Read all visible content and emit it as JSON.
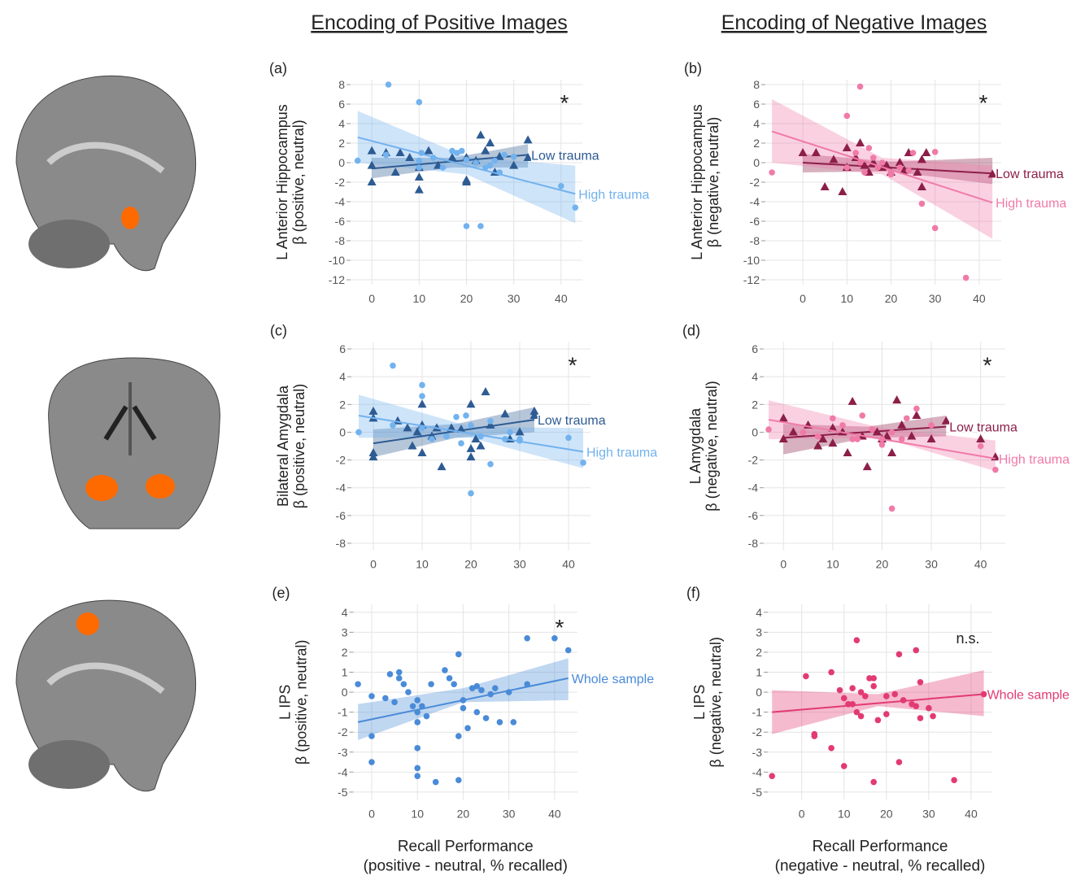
{
  "column_titles": [
    "Encoding of Positive Images",
    "Encoding of Negative Images"
  ],
  "chart_data": [
    {
      "type": "scatter",
      "panel": "(a)",
      "ylabel": [
        "L Anterior Hippocampus",
        "β (positive, neutral)"
      ],
      "annotation": "*",
      "xlim": [
        -4.5,
        44.5
      ],
      "ylim": [
        -12.5,
        8.5
      ],
      "xticks": [
        0,
        10,
        20,
        30,
        40
      ],
      "yticks": [
        8,
        6,
        4,
        2,
        0,
        -2,
        -4,
        -6,
        -8,
        -10,
        -12
      ],
      "grid": true,
      "series": [
        {
          "name": "Low trauma",
          "color": "#2d5b93",
          "marker": "triangle",
          "x": [
            0,
            0,
            0,
            3,
            5,
            6,
            8,
            10,
            10,
            10,
            12,
            14,
            17,
            20,
            20,
            22,
            23,
            24,
            25,
            26,
            27,
            30,
            33,
            33,
            20
          ],
          "values": [
            -0.3,
            -2,
            1.2,
            1,
            -1,
            1,
            0.5,
            -1.5,
            -2.8,
            -0.5,
            1.2,
            -0.3,
            0.5,
            -2,
            -1.8,
            0.2,
            2.8,
            1.2,
            2,
            -1,
            0.6,
            -0.3,
            2.3,
            0.5,
            0.5
          ],
          "fit_x": [
            0,
            33
          ],
          "fit_values": [
            -0.6,
            0.8
          ],
          "band_x": [
            0,
            17,
            33
          ],
          "band_lower": [
            -1.6,
            -0.5,
            -0.5
          ],
          "band_upper": [
            0.5,
            0.5,
            1.9
          ]
        },
        {
          "name": "High trauma",
          "color": "#72b2ee",
          "marker": "circle",
          "x": [
            -3,
            3.5,
            3,
            10,
            10,
            10,
            10.5,
            13,
            15,
            17,
            18,
            19,
            20,
            23,
            20,
            24,
            25,
            26,
            28,
            30,
            40,
            43,
            22,
            27
          ],
          "values": [
            0.2,
            8,
            0.8,
            6.2,
            -0.5,
            0.2,
            1,
            0.5,
            -0.5,
            1.2,
            1,
            1.2,
            -6.5,
            -6.5,
            0.3,
            -0.5,
            -0.3,
            0.2,
            0.8,
            0.6,
            -2.4,
            -4.6,
            0,
            -1
          ],
          "fit_x": [
            -3,
            43
          ],
          "fit_values": [
            2.6,
            -3.2
          ],
          "band_x": [
            -3,
            20,
            43
          ],
          "band_lower": [
            0,
            -1.2,
            -6.2
          ],
          "band_upper": [
            5.3,
            0.6,
            -0.3
          ]
        }
      ]
    },
    {
      "type": "scatter",
      "panel": "(b)",
      "ylabel": [
        "L Anterior Hippocampus",
        "β (negative, neutral)"
      ],
      "annotation": "*",
      "xlim": [
        -8.5,
        45
      ],
      "ylim": [
        -12.5,
        8.5
      ],
      "xticks": [
        0,
        10,
        20,
        30,
        40
      ],
      "yticks": [
        8,
        6,
        4,
        2,
        0,
        -2,
        -4,
        -6,
        -8,
        -10,
        -12
      ],
      "grid": true,
      "series": [
        {
          "name": "Low trauma",
          "color": "#8c1f48",
          "marker": "triangle",
          "x": [
            0,
            3,
            5,
            7,
            9,
            10,
            10,
            12,
            13,
            14,
            15,
            16,
            18,
            19,
            20,
            22,
            23,
            24,
            26,
            27,
            27,
            28,
            43
          ],
          "values": [
            1,
            1,
            -2.5,
            0.3,
            -3,
            1.5,
            -0.5,
            0.5,
            2,
            -0.3,
            -1,
            0,
            -0.5,
            -0.3,
            -1,
            0,
            -0.8,
            1,
            -1,
            0.3,
            -2.5,
            1,
            -1.2
          ],
          "fit_x": [
            0,
            43
          ],
          "fit_values": [
            0,
            -1.1
          ],
          "band_x": [
            0,
            20,
            43
          ],
          "band_lower": [
            -1,
            -0.9,
            -2.2
          ],
          "band_upper": [
            0.9,
            0.1,
            0.5
          ]
        },
        {
          "name": "High trauma",
          "color": "#f07aa8",
          "marker": "circle",
          "x": [
            -7,
            10,
            13,
            12,
            13,
            15,
            16,
            17,
            18,
            20,
            22,
            24,
            25,
            27,
            30,
            30,
            37,
            10,
            14,
            20
          ],
          "values": [
            -1,
            4.8,
            7.8,
            1,
            0,
            1.5,
            0.5,
            -0.5,
            0,
            -1,
            -0.5,
            -0.8,
            1,
            -4.2,
            -6.7,
            1.1,
            -11.8,
            -0.5,
            -1,
            -1.2
          ],
          "fit_x": [
            -7,
            43
          ],
          "fit_values": [
            3.2,
            -4.1
          ],
          "band_x": [
            -7,
            18,
            43
          ],
          "band_lower": [
            0,
            -1.2,
            -7.8
          ],
          "band_upper": [
            6.5,
            0.5,
            -0.3
          ]
        }
      ]
    },
    {
      "type": "scatter",
      "panel": "(c)",
      "ylabel": [
        "Bilateral Amygdala",
        "β (positive, neutral)"
      ],
      "annotation": "*",
      "xlim": [
        -4.5,
        44.5
      ],
      "ylim": [
        -8.5,
        6.5
      ],
      "xticks": [
        0,
        10,
        20,
        30,
        40
      ],
      "yticks": [
        6,
        4,
        2,
        0,
        -2,
        -4,
        -6,
        -8
      ],
      "grid": true,
      "series": [
        {
          "name": "Low trauma",
          "color": "#2d5b93",
          "marker": "triangle",
          "x": [
            0,
            0,
            0,
            0,
            5,
            7,
            8,
            9,
            10,
            10,
            10,
            12,
            13,
            14,
            16,
            18,
            20,
            20,
            21,
            22,
            23,
            24,
            27,
            28,
            30,
            33,
            33,
            20
          ],
          "values": [
            -1.8,
            -1.5,
            1.5,
            1,
            0.8,
            0.3,
            -1,
            0,
            -1.5,
            2,
            0.5,
            -0.3,
            0.3,
            -2.5,
            0.3,
            0.2,
            2,
            -1.2,
            -0.5,
            -1,
            2.9,
            0.5,
            1.3,
            -0.5,
            0,
            1.5,
            1.2,
            -1.8
          ],
          "fit_x": [
            0,
            33
          ],
          "fit_values": [
            -0.8,
            0.9
          ],
          "band_x": [
            0,
            17,
            33
          ],
          "band_lower": [
            -1.8,
            -0.4,
            0
          ],
          "band_upper": [
            0.2,
            0.6,
            1.8
          ]
        },
        {
          "name": "High trauma",
          "color": "#72b2ee",
          "marker": "circle",
          "x": [
            -3,
            4,
            4,
            10,
            10,
            10,
            12,
            15,
            17,
            18,
            19,
            20,
            20,
            22,
            24,
            24,
            27,
            30,
            30,
            40,
            43,
            28
          ],
          "values": [
            0,
            4.8,
            0.5,
            3.4,
            2.6,
            0.3,
            -0.5,
            -0.3,
            1.1,
            -0.8,
            1.2,
            -4.4,
            0.5,
            -0.3,
            -2.3,
            0.8,
            -0.5,
            -0.5,
            -0.6,
            -0.4,
            -2.2,
            0
          ],
          "fit_x": [
            -3,
            43
          ],
          "fit_values": [
            1.2,
            -1.4
          ],
          "band_x": [
            -3,
            20,
            43
          ],
          "band_lower": [
            -0.4,
            -0.4,
            -2.6
          ],
          "band_upper": [
            2.7,
            0.4,
            0.3
          ]
        }
      ]
    },
    {
      "type": "scatter",
      "panel": "(d)",
      "ylabel": [
        "L Amygdala",
        "β (negative, neutral)"
      ],
      "annotation": "*",
      "xlim": [
        -4,
        45
      ],
      "ylim": [
        -8.5,
        6.5
      ],
      "xticks": [
        0,
        10,
        20,
        30,
        40
      ],
      "yticks": [
        6,
        4,
        2,
        0,
        -2,
        -4,
        -6,
        -8
      ],
      "grid": true,
      "series": [
        {
          "name": "Low trauma",
          "color": "#8c1f48",
          "marker": "triangle",
          "x": [
            0,
            0,
            2,
            5,
            7,
            8,
            10,
            10,
            12,
            13,
            14,
            16,
            17,
            19,
            20,
            21,
            22,
            23,
            24,
            26,
            27,
            30,
            33,
            40,
            43
          ],
          "values": [
            1,
            -0.5,
            0,
            0.5,
            -1,
            -0.5,
            -0.8,
            0.3,
            0,
            -1.5,
            2.2,
            -0.3,
            -2.5,
            0,
            -0.5,
            -0.3,
            -1.5,
            2.3,
            0.5,
            -0.3,
            1.2,
            -0.5,
            0.8,
            -0.5,
            -1.8
          ],
          "fit_x": [
            0,
            33
          ],
          "fit_values": [
            -0.4,
            0.4
          ],
          "band_x": [
            0,
            17,
            33
          ],
          "band_lower": [
            -1.6,
            -0.4,
            -0.3
          ],
          "band_upper": [
            0.6,
            0.4,
            1.2
          ]
        },
        {
          "name": "High trauma",
          "color": "#f07aa8",
          "marker": "circle",
          "x": [
            -3,
            4,
            7,
            10,
            12,
            14,
            15,
            16,
            20,
            22,
            22,
            24,
            25,
            27,
            30,
            40,
            43,
            18,
            20
          ],
          "values": [
            0.2,
            0,
            -0.3,
            1,
            0.5,
            -0.5,
            -0.5,
            1.2,
            -0.5,
            0,
            -5.5,
            -0.5,
            1,
            1.7,
            0.5,
            -1,
            -2.7,
            0.2,
            -0.9
          ],
          "fit_x": [
            -3,
            43
          ],
          "fit_values": [
            0.9,
            -1.9
          ],
          "band_x": [
            -3,
            20,
            43
          ],
          "band_lower": [
            -0.5,
            -0.4,
            -2.8
          ],
          "band_upper": [
            2.3,
            0.3,
            -0.6
          ]
        }
      ]
    },
    {
      "type": "scatter",
      "panel": "(e)",
      "ylabel": [
        "L IPS",
        "β (positive, neutral)"
      ],
      "xlabel": [
        "Recall Performance",
        "(positive - neutral, % recalled)"
      ],
      "annotation": "*",
      "xlim": [
        -4,
        45
      ],
      "ylim": [
        -5.4,
        4.4
      ],
      "xticks": [
        0,
        10,
        20,
        30,
        40
      ],
      "yticks": [
        4,
        3,
        2,
        1,
        0,
        -1,
        -2,
        -3,
        -4,
        -5
      ],
      "grid": true,
      "series": [
        {
          "name": "Whole sample",
          "color": "#4a8bd8",
          "marker": "circle",
          "x": [
            -3,
            0,
            0,
            0,
            3,
            4,
            5,
            6,
            6,
            7,
            8,
            9,
            10,
            10,
            10,
            10,
            10,
            10,
            11,
            12,
            13,
            14,
            16,
            17,
            18,
            19,
            19,
            19,
            20,
            20,
            21,
            22,
            23,
            23,
            24,
            25,
            26,
            27,
            28,
            30,
            31,
            34,
            34,
            40,
            43
          ],
          "values": [
            0.4,
            -0.2,
            -2.2,
            -3.5,
            -0.3,
            0.9,
            -0.5,
            1,
            0.7,
            0.4,
            0,
            -0.7,
            -0.4,
            -1,
            -1.5,
            -2.8,
            -3.8,
            -4.2,
            -0.7,
            -1.2,
            0.4,
            -4.5,
            1.1,
            0.7,
            0.4,
            1.9,
            -2.2,
            -4.4,
            -0.4,
            -0.8,
            -1.8,
            0.2,
            0.3,
            -1,
            0.1,
            -1.3,
            -0.1,
            0.2,
            -1.5,
            0,
            -1.5,
            2.7,
            0.4,
            2.7,
            2.1
          ],
          "fit_x": [
            -3,
            43
          ],
          "fit_values": [
            -1.5,
            0.7
          ],
          "band_x": [
            -3,
            20,
            43
          ],
          "band_lower": [
            -2.4,
            -0.5,
            -0.4
          ],
          "band_upper": [
            -0.6,
            0.2,
            1.7
          ]
        }
      ]
    },
    {
      "type": "scatter",
      "panel": "(f)",
      "ylabel": [
        "L IPS",
        "β (negative, neutral)"
      ],
      "xlabel": [
        "Recall Performance",
        "(negative - neutral, % recalled)"
      ],
      "annotation": "n.s.",
      "xlim": [
        -8,
        45
      ],
      "ylim": [
        -5.4,
        4.4
      ],
      "xticks": [
        0,
        10,
        20,
        30,
        40
      ],
      "yticks": [
        4,
        3,
        2,
        1,
        0,
        -1,
        -2,
        -3,
        -4,
        -5
      ],
      "grid": true,
      "series": [
        {
          "name": "Whole sample",
          "color": "#e23a74",
          "marker": "circle",
          "x": [
            -7,
            1,
            3,
            3,
            7,
            7,
            9,
            10,
            10,
            11,
            12,
            12,
            13,
            13,
            14,
            14,
            15,
            16,
            17,
            17,
            17,
            18,
            20,
            22,
            23,
            23,
            24,
            27,
            27,
            28,
            28,
            30,
            31,
            36,
            43,
            26,
            20
          ],
          "values": [
            -4.2,
            0.8,
            -2.1,
            -2.2,
            -2.8,
            1,
            0.1,
            -3.7,
            -0.3,
            -0.6,
            -0.6,
            0.2,
            2.6,
            -1,
            -1.2,
            0,
            -0.2,
            0.7,
            0.7,
            -4.5,
            0.3,
            -1.4,
            -0.2,
            -0.1,
            1.9,
            -3.5,
            -0.4,
            2.1,
            -0.7,
            0.5,
            -1.3,
            -0.8,
            -1.2,
            -4.4,
            -0.1,
            -0.6,
            -1.1
          ],
          "fit_x": [
            -7,
            43
          ],
          "fit_values": [
            -1,
            -0.1
          ],
          "band_x": [
            -7,
            18,
            43
          ],
          "band_lower": [
            -2.1,
            -0.7,
            -1.2
          ],
          "band_upper": [
            0.1,
            -0.1,
            1.1
          ]
        }
      ]
    }
  ]
}
